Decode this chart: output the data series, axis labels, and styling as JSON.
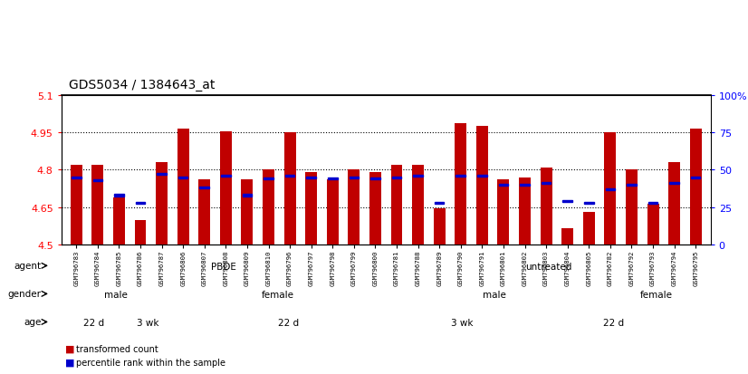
{
  "title": "GDS5034 / 1384643_at",
  "samples": [
    "GSM796783",
    "GSM796784",
    "GSM796785",
    "GSM796786",
    "GSM796787",
    "GSM796806",
    "GSM796807",
    "GSM796808",
    "GSM796809",
    "GSM796810",
    "GSM796796",
    "GSM796797",
    "GSM796798",
    "GSM796799",
    "GSM796800",
    "GSM796781",
    "GSM796788",
    "GSM796789",
    "GSM796790",
    "GSM796791",
    "GSM796801",
    "GSM796802",
    "GSM796803",
    "GSM796804",
    "GSM796805",
    "GSM796782",
    "GSM796792",
    "GSM796793",
    "GSM796794",
    "GSM796795"
  ],
  "bar_values": [
    4.82,
    4.82,
    4.69,
    4.6,
    4.83,
    4.966,
    4.76,
    4.955,
    4.76,
    4.8,
    4.95,
    4.79,
    4.76,
    4.8,
    4.79,
    4.82,
    4.82,
    4.645,
    4.985,
    4.975,
    4.76,
    4.77,
    4.81,
    4.565,
    4.63,
    4.95,
    4.8,
    4.665,
    4.83,
    4.966
  ],
  "percentile_ranks": [
    45,
    43,
    33,
    28,
    47,
    45,
    38,
    46,
    33,
    44,
    46,
    45,
    44,
    45,
    44,
    45,
    46,
    28,
    46,
    46,
    40,
    40,
    41,
    29,
    28,
    37,
    40,
    28,
    41,
    45
  ],
  "ymin": 4.5,
  "ymax": 5.1,
  "bar_color": "#c00000",
  "percentile_color": "#0000cc",
  "agent_groups": [
    {
      "label": "PBDE",
      "start": 0,
      "end": 15,
      "color": "#a8e8a8"
    },
    {
      "label": "untreated",
      "start": 15,
      "end": 30,
      "color": "#50c050"
    }
  ],
  "gender_groups": [
    {
      "label": "male",
      "start": 0,
      "end": 5,
      "color": "#c8c8f0"
    },
    {
      "label": "female",
      "start": 5,
      "end": 15,
      "color": "#9898d8"
    },
    {
      "label": "male",
      "start": 15,
      "end": 25,
      "color": "#c8c8f0"
    },
    {
      "label": "female",
      "start": 25,
      "end": 30,
      "color": "#9898d8"
    }
  ],
  "age_groups": [
    {
      "label": "22 d",
      "start": 0,
      "end": 3,
      "color": "#ffc8c8"
    },
    {
      "label": "3 wk",
      "start": 3,
      "end": 5,
      "color": "#d88888"
    },
    {
      "label": "22 d",
      "start": 5,
      "end": 16,
      "color": "#ffc8c8"
    },
    {
      "label": "3 wk",
      "start": 16,
      "end": 21,
      "color": "#d88888"
    },
    {
      "label": "22 d",
      "start": 21,
      "end": 30,
      "color": "#ffc8c8"
    }
  ],
  "right_yticks": [
    0,
    25,
    50,
    75,
    100
  ],
  "right_ylabels": [
    "0",
    "25",
    "50",
    "75",
    "100%"
  ],
  "left_yticks": [
    4.5,
    4.65,
    4.8,
    4.95,
    5.1
  ],
  "dotted_lines": [
    4.65,
    4.8,
    4.95
  ],
  "bg_color": "#ffffff"
}
